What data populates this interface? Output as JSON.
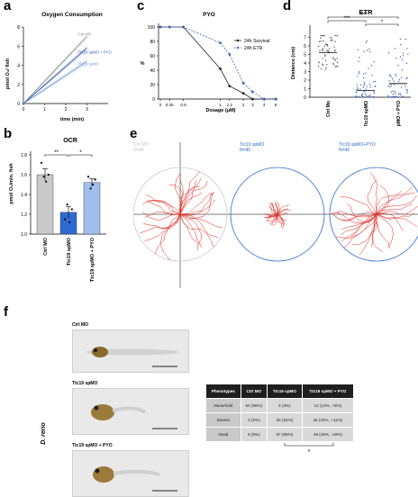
{
  "panels": {
    "a": "a",
    "b": "b",
    "c": "c",
    "d": "d",
    "e": "e",
    "f": "f"
  },
  "panel_a": {
    "chart_data": {
      "type": "line",
      "title": "Oxygen Consumption",
      "xlabel": "time (min)",
      "ylabel": "pmol O₂/ fish",
      "xlim": [
        0,
        4
      ],
      "ylim": [
        0,
        8
      ],
      "xticks": [
        "0",
        "1",
        "2",
        "3"
      ],
      "yticks": [
        "0",
        "2",
        "4",
        "6",
        "8"
      ],
      "series": [
        {
          "name": "Ctrl MO",
          "color": "#8c8c8c",
          "x": [
            0,
            3
          ],
          "y": [
            0,
            7.0
          ]
        },
        {
          "name": "Ttc19 spMO + PYO",
          "color": "#3a5fb5",
          "x": [
            0,
            3
          ],
          "y": [
            0,
            5.8
          ]
        },
        {
          "name": "Ttc19 spMO",
          "color": "#6f9be0",
          "x": [
            0,
            3
          ],
          "y": [
            0,
            4.4
          ]
        }
      ]
    }
  },
  "panel_b": {
    "chart_data": {
      "type": "bar",
      "title": "OCR",
      "ylabel": "pmol O₂/min. fish",
      "ylim": [
        1.0,
        1.8
      ],
      "yticks": [
        "1.0",
        "1.2",
        "1.4",
        "1.6",
        "1.8"
      ],
      "categories": [
        "Ctrl MO",
        "Ttc19 spMO",
        "Ttc19 spMO + PYO"
      ],
      "values": [
        1.6,
        1.22,
        1.52
      ],
      "errors": [
        0.06,
        0.06,
        0.04
      ],
      "colors": [
        "#c9c9c9",
        "#2f6ad0",
        "#9fc0ee"
      ],
      "points": [
        [
          1.72,
          1.58,
          1.53,
          1.6
        ],
        [
          1.15,
          1.3,
          1.12,
          1.25
        ],
        [
          1.58,
          1.46,
          1.5,
          1.55
        ]
      ],
      "significance": [
        {
          "from": 0,
          "to": 1,
          "label": "**"
        },
        {
          "from": 1,
          "to": 2,
          "label": "*"
        }
      ]
    }
  },
  "panel_c": {
    "chart_data": {
      "type": "line",
      "title": "PYO",
      "xlabel": "Dosage (μM)",
      "ylabel": "%",
      "ylim": [
        0,
        100
      ],
      "xticks": [
        "0",
        "0.25",
        "0.5",
        "1",
        "1.2",
        "2",
        "3",
        "4",
        "5"
      ],
      "yticks": [
        "0",
        "20",
        "40",
        "60",
        "80",
        "100"
      ],
      "series": [
        {
          "name": "24h Survival",
          "color": "#222222",
          "y": [
            100,
            100,
            100,
            42,
            18,
            8,
            0,
            0,
            0
          ]
        },
        {
          "name": "24h ETR",
          "color": "#3a63c0",
          "y": [
            100,
            100,
            100,
            78,
            62,
            22,
            10,
            0,
            0
          ]
        }
      ]
    }
  },
  "panel_d": {
    "chart_data": {
      "type": "scatter",
      "title": "ETR",
      "ylabel": "Distance (cm)",
      "ylim": [
        0,
        8
      ],
      "yticks": [
        "0",
        "1",
        "2",
        "3",
        "4",
        "5",
        "6",
        "7"
      ],
      "categories": [
        "Ctrl Mo",
        "Ttc19 spMO",
        "Ttc19 spMO + PYO"
      ],
      "means": [
        5.2,
        0.8,
        1.6
      ],
      "colors": [
        "#555555",
        "#3a63c0",
        "#3a63c0"
      ],
      "significance": [
        {
          "from": 0,
          "to": 1,
          "label": "***"
        },
        {
          "from": 0,
          "to": 2,
          "label": "****"
        },
        {
          "from": 1,
          "to": 2,
          "label": "*"
        }
      ]
    }
  },
  "panel_e": {
    "circles": [
      {
        "label": "Ctrl MO",
        "n": "N=40",
        "color": "#c8c8c8"
      },
      {
        "label": "Ttc19 spMO",
        "n": "N=40",
        "color": "#2f6ad0"
      },
      {
        "label": "Ttc19 spMO+PYO",
        "n": "N=40",
        "color": "#2f6ad0"
      }
    ]
  },
  "panel_f": {
    "species": "D. rerio",
    "images": [
      "Ctrl MO",
      "Ttc19 spMO",
      "Ttc19 spMO + PYO"
    ],
    "table": {
      "headers": [
        "Phenotypes",
        "Ctrl MO",
        "Ttc19 spMO",
        "Ttc19 spMO + PYO"
      ],
      "rows": [
        [
          "None/mild",
          "64 (90%)",
          "4 (4%)",
          "12 (12%, +8%)"
        ],
        [
          "Severe",
          "2 (2%)",
          "32 (31%)",
          "45 (42%, +11%)"
        ],
        [
          "Dead",
          "6 (8%)",
          "67 (65%)",
          "48 (46%, -19%)"
        ]
      ],
      "significance": "*"
    }
  }
}
